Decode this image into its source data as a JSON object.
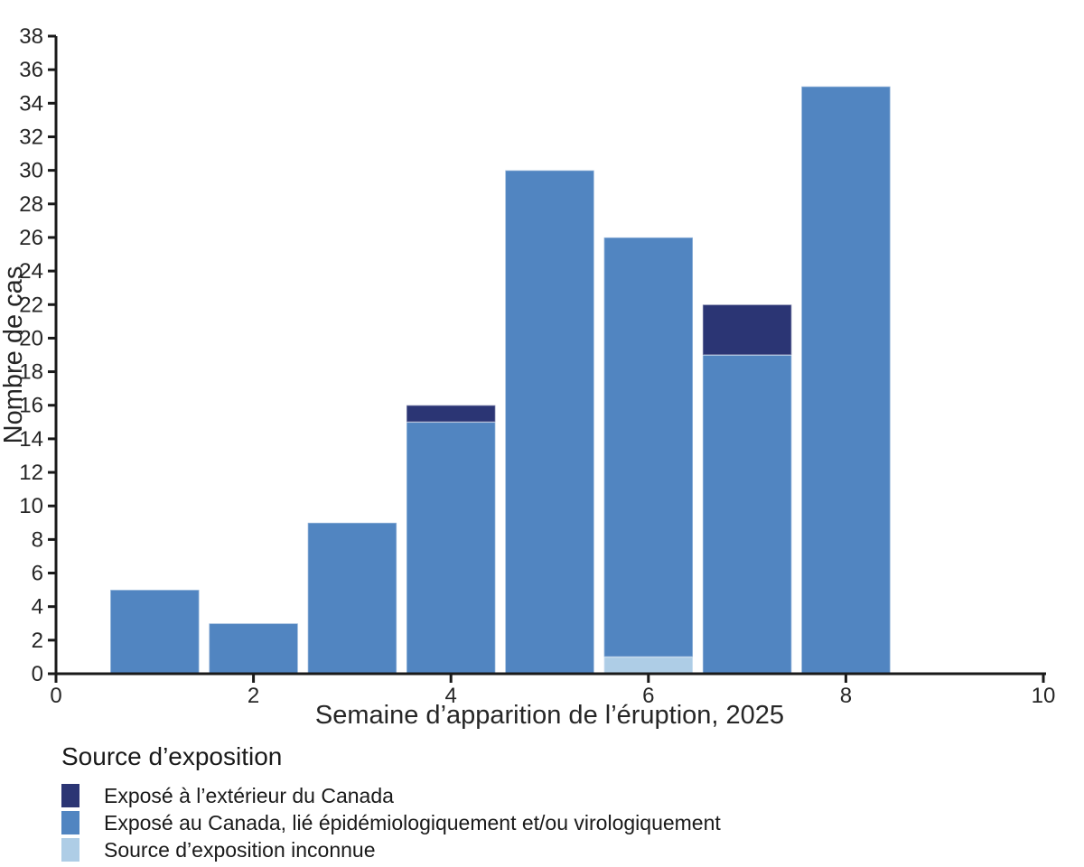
{
  "figure": {
    "background": "#ffffff"
  },
  "chart_data": {
    "type": "bar",
    "stacked": true,
    "title": "",
    "xlabel": "Semaine d’apparition de l’éruption, 2025",
    "ylabel": "Nombre de cas",
    "xlim": [
      0,
      10
    ],
    "ylim": [
      0,
      38
    ],
    "xticks": [
      0,
      2,
      4,
      6,
      8,
      10
    ],
    "ytick_step": 2,
    "bar_width": 0.9,
    "grid": false,
    "axis_color": "#1a1a1a",
    "text_color": "#262626",
    "categories": [
      1,
      2,
      3,
      4,
      5,
      6,
      7,
      8
    ],
    "series": [
      {
        "name": "Source d’exposition inconnue",
        "color": "#aecde6",
        "values": [
          0,
          0,
          0,
          0,
          0,
          1,
          0,
          0
        ]
      },
      {
        "name": "Exposé au Canada, lié épidémiologiquement et/ou virologiquement",
        "color": "#5185c1",
        "values": [
          5,
          3,
          9,
          15,
          30,
          25,
          19,
          35
        ]
      },
      {
        "name": "Exposé à l’extérieur du Canada",
        "color": "#2b3574",
        "values": [
          0,
          0,
          0,
          1,
          0,
          0,
          3,
          0
        ]
      }
    ],
    "stack_totals": [
      5,
      3,
      9,
      16,
      30,
      26,
      22,
      35
    ],
    "legend": {
      "title": "Source d’exposition",
      "position": "bottom-left",
      "items": [
        {
          "label": "Exposé à l’extérieur du Canada",
          "color": "#2b3574"
        },
        {
          "label": "Exposé au Canada, lié épidémiologiquement et/ou virologiquement",
          "color": "#5185c1"
        },
        {
          "label": "Source d’exposition inconnue",
          "color": "#aecde6"
        }
      ]
    }
  }
}
